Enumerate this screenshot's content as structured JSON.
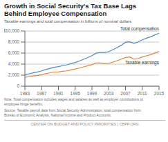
{
  "chart_data": {
    "type": "line",
    "title": "Growth in Social Security's Tax Base Lags\nBehind Employee Compensation",
    "subtitle": "Taxable earnings and total compensation in billions of nominal dollars",
    "x": [
      1983,
      1984,
      1985,
      1986,
      1987,
      1988,
      1989,
      1990,
      1991,
      1992,
      1993,
      1994,
      1995,
      1996,
      1997,
      1998,
      1999,
      2000,
      2001,
      2002,
      2003,
      2004,
      2005,
      2006,
      2007,
      2008,
      2009,
      2010,
      2011,
      2012,
      2013,
      2014,
      2015
    ],
    "series": [
      {
        "name": "Total compensation",
        "color": "#4f86c6",
        "values": [
          2100,
          2250,
          2420,
          2580,
          2780,
          3010,
          3230,
          3430,
          3550,
          3720,
          3870,
          4080,
          4300,
          4560,
          4870,
          5180,
          5530,
          5980,
          6100,
          6100,
          6250,
          6620,
          7000,
          7420,
          7950,
          8050,
          7760,
          8000,
          8400,
          8700,
          8950,
          9300,
          9600
        ]
      },
      {
        "name": "Taxable earnings",
        "color": "#e8832a",
        "values": [
          1600,
          1720,
          1850,
          1960,
          2100,
          2280,
          2440,
          2560,
          2580,
          2700,
          2780,
          2950,
          3100,
          3280,
          3500,
          3700,
          3900,
          4200,
          4200,
          4100,
          4150,
          4380,
          4620,
          4900,
          5200,
          5300,
          4900,
          5000,
          5300,
          5500,
          5700,
          6000,
          6300
        ]
      }
    ],
    "xlim": [
      1983,
      2015
    ],
    "xticks": [
      1983,
      1987,
      1991,
      1995,
      1999,
      2003,
      2007,
      2011,
      2015
    ],
    "ylim": [
      0,
      10000
    ],
    "yticks": [
      0,
      {
        "value": 2000,
        "label": "2,000"
      },
      {
        "value": 4000,
        "label": "4,000"
      },
      {
        "value": 6000,
        "label": "6,000"
      },
      {
        "value": 8000,
        "label": "8,000"
      },
      {
        "value": 10000,
        "label": "$10,000"
      }
    ],
    "grid": true,
    "annotations": [
      "Note: Total compensation includes wages and salaries as well as employer contributions to\nemployee fringe benefits.",
      "Source: Taxable payroll data from Social Security Administration; total compensation from\nBureau of Economic Analysis, National Income and Product Accounts.",
      "CENTER ON BUDGET AND POLICY PRIORITIES | CBPP.ORG"
    ]
  }
}
